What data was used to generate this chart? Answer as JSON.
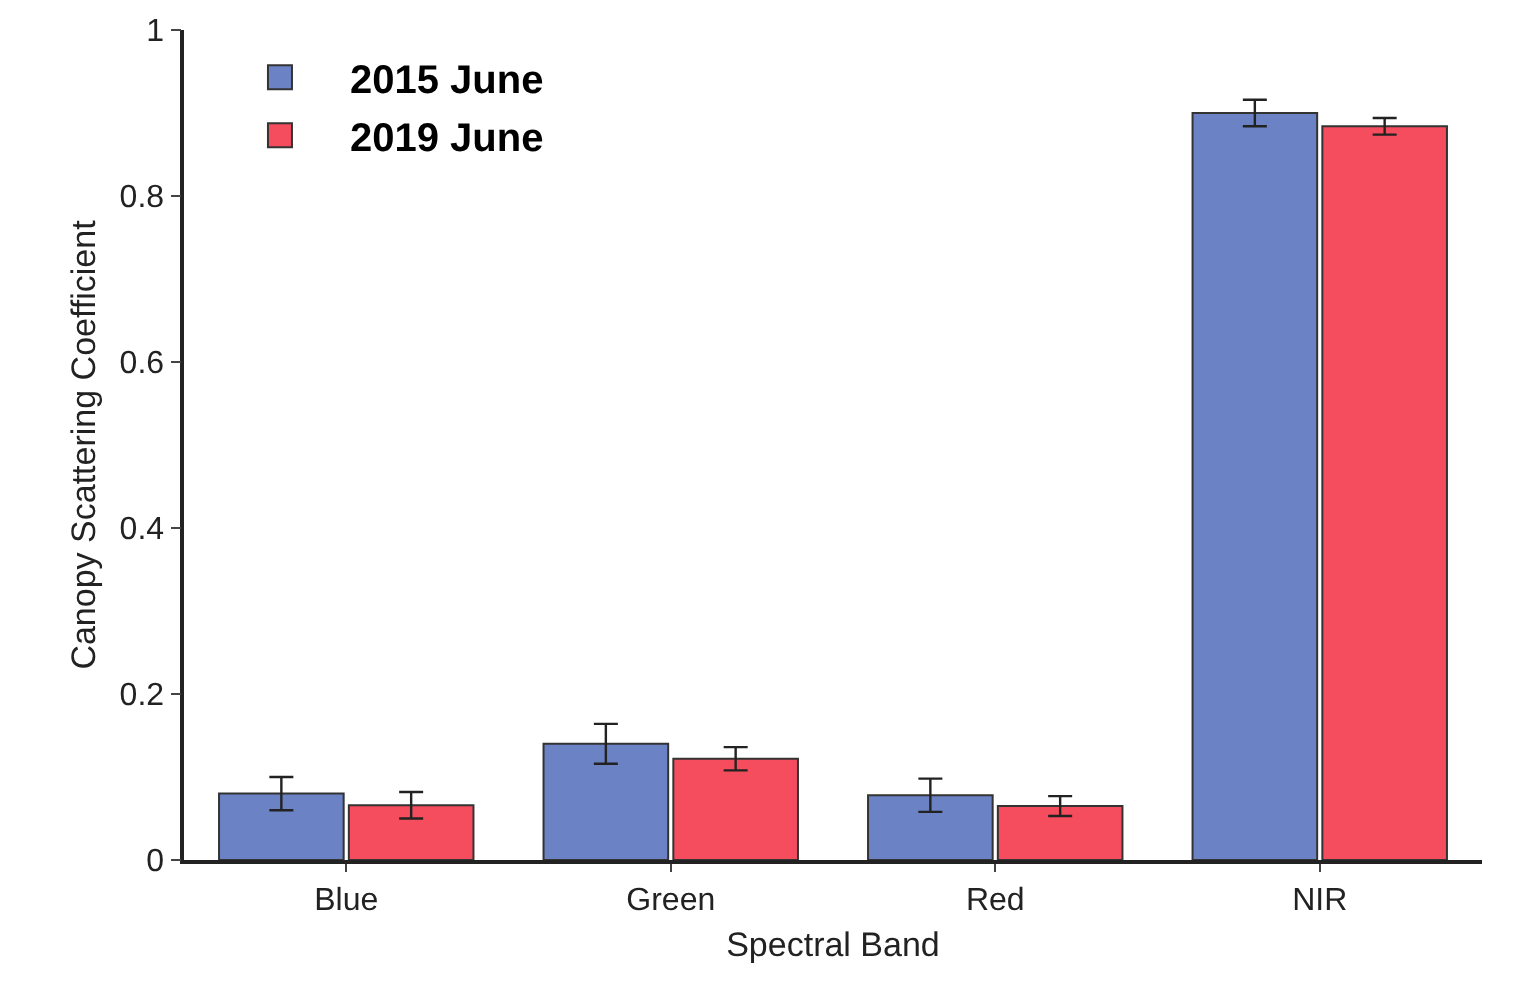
{
  "chart_data": {
    "type": "bar",
    "xlabel": "Spectral Band",
    "ylabel": "Canopy Scattering Coefficient",
    "categories": [
      "Blue",
      "Green",
      "Red",
      "NIR"
    ],
    "series": [
      {
        "name": "2015 June",
        "color": "#6b82c4",
        "values": [
          0.08,
          0.14,
          0.078,
          0.9
        ],
        "errors": [
          0.02,
          0.024,
          0.02,
          0.016
        ]
      },
      {
        "name": "2019 June",
        "color": "#f54d5e",
        "values": [
          0.066,
          0.122,
          0.065,
          0.884
        ],
        "errors": [
          0.016,
          0.014,
          0.012,
          0.01
        ]
      }
    ],
    "ylim": [
      0,
      1
    ],
    "yticks": [
      0,
      0.2,
      0.4,
      0.6,
      0.8,
      1
    ],
    "grid": false,
    "legend": "top left"
  }
}
